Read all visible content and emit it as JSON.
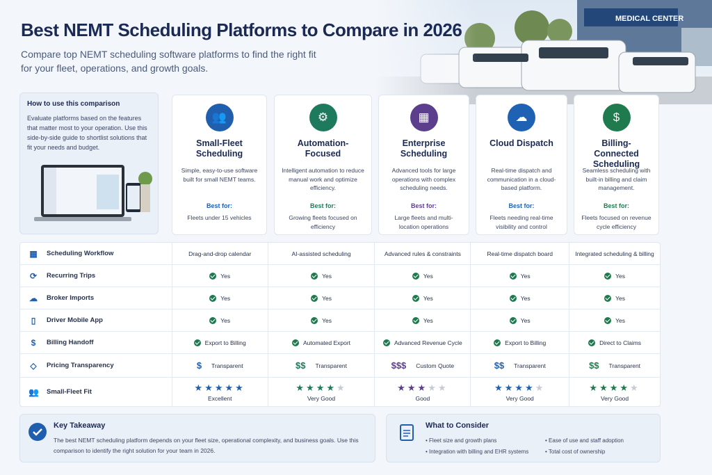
{
  "header": {
    "title": "Best NEMT Scheduling Platforms to Compare in 2026",
    "subtitle": "Compare top NEMT scheduling software platforms to find the right fit for your fleet, operations, and growth goals.",
    "image_sign": "MEDICAL CENTER"
  },
  "guide": {
    "title": "How to use this comparison",
    "text": "Evaluate platforms based on the features that matter most to your operation. Use this side-by-side guide to shortlist solutions that fit your needs and budget."
  },
  "platforms": [
    {
      "name": "Small-Fleet Scheduling",
      "color": "#1f5fae",
      "description": "Simple, easy-to-use software built for small NEMT teams.",
      "best_for_label": "Best for:",
      "best_for": "Fleets under 15 vehicles"
    },
    {
      "name": "Automation-Focused",
      "color": "#1e7a5c",
      "description": "Intelligent automation to reduce manual work and optimize efficiency.",
      "best_for_label": "Best for:",
      "best_for": "Growing fleets focused on efficiency"
    },
    {
      "name": "Enterprise Scheduling",
      "color": "#5b3f8c",
      "description": "Advanced tools for large operations with complex scheduling needs.",
      "best_for_label": "Best for:",
      "best_for": "Large fleets and multi-location operations"
    },
    {
      "name": "Cloud Dispatch",
      "color": "#1f62b4",
      "description": "Real-time dispatch and communication in a cloud-based platform.",
      "best_for_label": "Best for:",
      "best_for": "Fleets needing real-time visibility and control"
    },
    {
      "name": "Billing-Connected Scheduling",
      "color": "#1f7a4e",
      "description": "Seamless scheduling with built-in billing and claim management.",
      "best_for_label": "Best for:",
      "best_for": "Fleets focused on revenue cycle efficiency"
    }
  ],
  "features": [
    {
      "label": "Scheduling Workflow",
      "cells": [
        "Drag-and-drop calendar",
        "AI-assisted scheduling",
        "Advanced rules & constraints",
        "Real-time dispatch board",
        "Integrated scheduling & billing"
      ]
    },
    {
      "label": "Recurring Trips",
      "cells": [
        "Yes",
        "Yes",
        "Yes",
        "Yes",
        "Yes"
      ]
    },
    {
      "label": "Broker Imports",
      "cells": [
        "Yes",
        "Yes",
        "Yes",
        "Yes",
        "Yes"
      ]
    },
    {
      "label": "Driver Mobile App",
      "cells": [
        "Yes",
        "Yes",
        "Yes",
        "Yes",
        "Yes"
      ]
    },
    {
      "label": "Billing Handoff",
      "cells": [
        "Export to Billing",
        "Automated Export",
        "Advanced Revenue Cycle",
        "Export to Billing",
        "Direct to Claims"
      ]
    },
    {
      "label": "Pricing Transparency",
      "cells": [
        {
          "symbol": "$",
          "text": "Transparent"
        },
        {
          "symbol": "$$",
          "text": "Transparent"
        },
        {
          "symbol": "$$$",
          "text": "Custom Quote"
        },
        {
          "symbol": "$$",
          "text": "Transparent"
        },
        {
          "symbol": "$$",
          "text": "Transparent"
        }
      ]
    },
    {
      "label": "Small-Fleet Fit",
      "max_stars": 5,
      "cells": [
        {
          "stars": 5,
          "text": "Excellent"
        },
        {
          "stars": 4,
          "text": "Very Good"
        },
        {
          "stars": 3,
          "text": "Good"
        },
        {
          "stars": 4,
          "text": "Very Good"
        },
        {
          "stars": 4,
          "text": "Very Good"
        }
      ]
    }
  ],
  "takeaway": {
    "title": "Key Takeaway",
    "text": "The best NEMT scheduling platform depends on your fleet size, operational complexity, and business goals. Use this comparison to identify the right solution for your team in 2026."
  },
  "consider": {
    "title": "What to Consider",
    "items": [
      "Fleet size and growth plans",
      "Ease of use and staff adoption",
      "Integration with billing and EHR systems",
      "Total cost of ownership"
    ]
  }
}
